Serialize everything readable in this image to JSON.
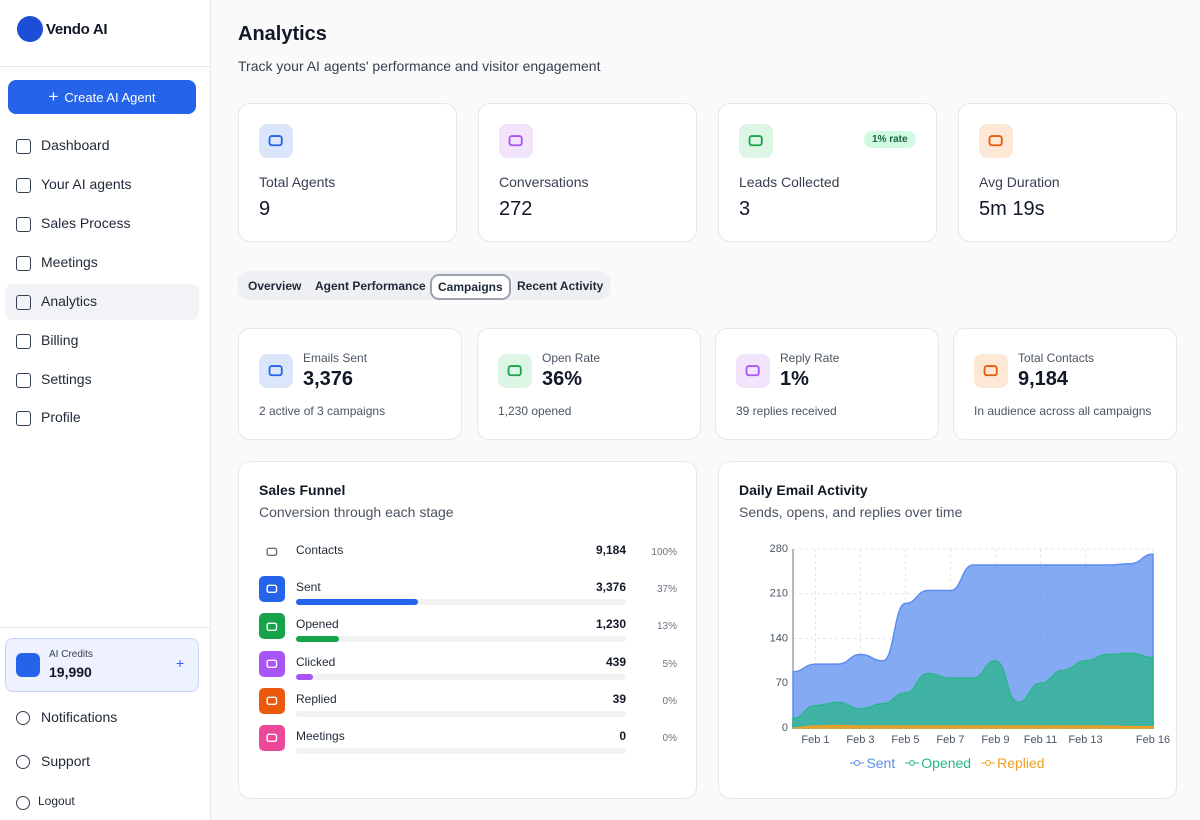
{
  "brand": "Vendo AI",
  "sidebar": {
    "create_button": "Create AI Agent",
    "nav": [
      "Dashboard",
      "Your AI agents",
      "Sales Process",
      "Meetings",
      "Analytics",
      "Billing",
      "Settings",
      "Profile"
    ],
    "active_nav": 4,
    "credits": {
      "label": "AI Credits",
      "value": "19,990"
    },
    "footer": [
      "Notifications",
      "Support",
      "Logout"
    ]
  },
  "header": {
    "title": "Analytics",
    "subtitle": "Track your AI agents' performance and visitor engagement"
  },
  "stats": [
    {
      "label": "Total Agents",
      "value": "9"
    },
    {
      "label": "Conversations",
      "value": "272"
    },
    {
      "label": "Leads Collected",
      "value": "3",
      "badge": "1% rate"
    },
    {
      "label": "Avg Duration",
      "value": "5m 19s"
    }
  ],
  "tabs": {
    "items": [
      "Overview",
      "Agent Performance",
      "Campaigns",
      "Recent Activity"
    ],
    "active": 2
  },
  "campaign_stats": [
    {
      "label": "Emails Sent",
      "value": "3,376",
      "note": "2 active of 3 campaigns"
    },
    {
      "label": "Open Rate",
      "value": "36%",
      "note": "1,230 opened"
    },
    {
      "label": "Reply Rate",
      "value": "1%",
      "note": "39 replies received"
    },
    {
      "label": "Total Contacts",
      "value": "9,184",
      "note": "In audience across all campaigns"
    }
  ],
  "funnel": {
    "title": "Sales Funnel",
    "subtitle": "Conversion through each stage",
    "stages": [
      {
        "name": "Contacts",
        "count": "9,184",
        "share": {
          "value": 100,
          "label": "100%"
        }
      },
      {
        "name": "Sent",
        "count": "3,376",
        "share": {
          "value": 37,
          "label": "37%"
        }
      },
      {
        "name": "Opened",
        "count": "1,230",
        "share": {
          "value": 13,
          "label": "13%"
        }
      },
      {
        "name": "Clicked",
        "count": "439",
        "share": {
          "value": 5,
          "label": "5%"
        }
      },
      {
        "name": "Replied",
        "count": "39",
        "share": {
          "value": 0,
          "label": "0%"
        }
      },
      {
        "name": "Meetings",
        "count": "0",
        "share": {
          "value": 0,
          "label": "0%"
        }
      }
    ]
  },
  "chart_data": {
    "type": "area",
    "title": "Daily Email Activity",
    "subtitle": "Sends, opens, and replies over time",
    "categories": [
      null,
      "Feb 1",
      null,
      "Feb 3",
      null,
      "Feb 5",
      null,
      "Feb 7",
      null,
      "Feb 9",
      null,
      "Feb 11",
      null,
      "Feb 13",
      null,
      null,
      "Feb 16"
    ],
    "series": [
      {
        "name": "Sent",
        "color": "#5b8def",
        "values": [
          88,
          100,
          100,
          115,
          105,
          195,
          215,
          215,
          255,
          255,
          255,
          255,
          255,
          255,
          255,
          257,
          272
        ]
      },
      {
        "name": "Opened",
        "color": "#2bb58a",
        "values": [
          15,
          35,
          40,
          30,
          38,
          55,
          85,
          78,
          78,
          105,
          40,
          70,
          90,
          105,
          115,
          117,
          110
        ]
      },
      {
        "name": "Replied",
        "color": "#f0a020",
        "values": [
          0,
          3,
          4,
          3,
          3,
          3,
          3,
          3,
          3,
          3,
          3,
          3,
          3,
          3,
          3,
          2,
          2
        ]
      }
    ],
    "ylim": [
      0,
      280
    ],
    "yticks": [
      0,
      70,
      140,
      210,
      280
    ],
    "grid": true
  }
}
